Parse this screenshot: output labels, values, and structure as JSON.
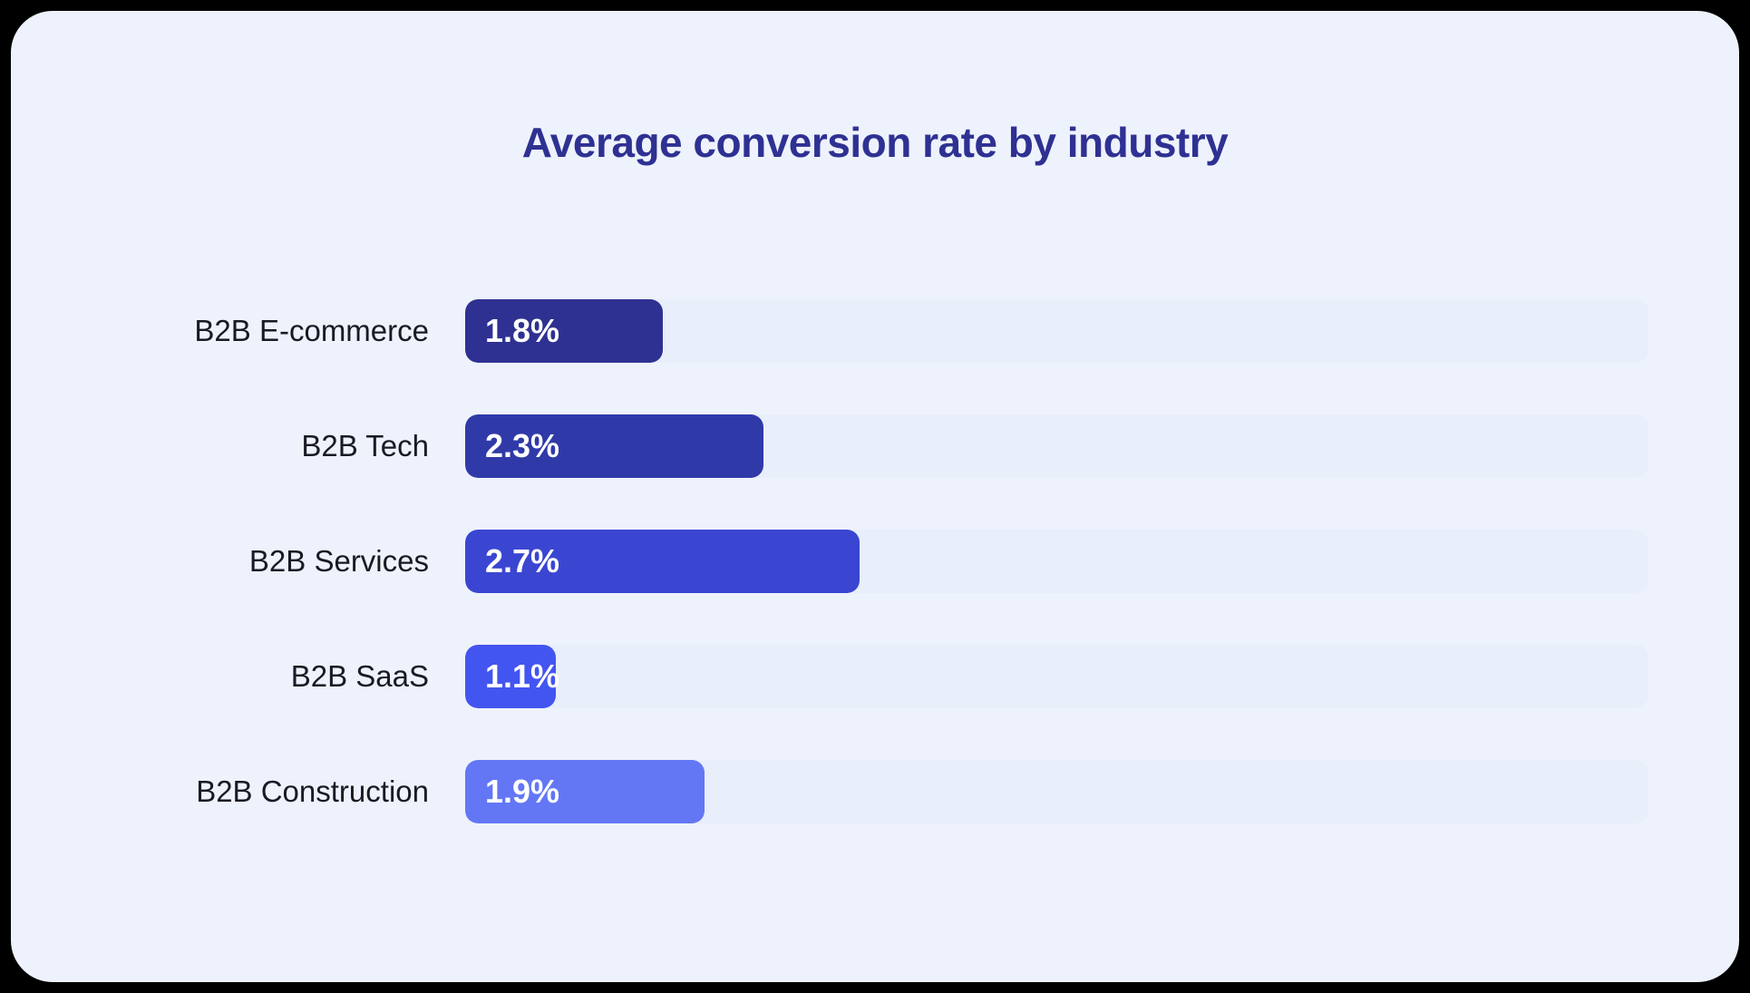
{
  "page": {
    "background": "#000000",
    "card_background": "#eef2fc"
  },
  "chart_data": {
    "type": "bar",
    "orientation": "horizontal",
    "title": "Average conversion rate by industry",
    "title_color": "#2e3192",
    "categories": [
      "B2B E-commerce",
      "B2B Tech",
      "B2B Services",
      "B2B SaaS",
      "B2B Construction"
    ],
    "values": [
      1.8,
      2.3,
      2.7,
      1.1,
      1.9
    ],
    "value_suffix": "%",
    "value_labels": [
      "1.8%",
      "2.3%",
      "2.7%",
      "1.1%",
      "1.9%"
    ],
    "bar_colors": [
      "#2e3191",
      "#2f3aa8",
      "#3a46d1",
      "#4355f0",
      "#6377f5"
    ],
    "track_color": "#e9eefb",
    "bar_width_pct": [
      16.7,
      25.2,
      33.3,
      7.7,
      20.2
    ],
    "value_label_color": "#ffffff",
    "category_label_color": "#191a23",
    "xlim": [
      0,
      8
    ],
    "grid": false,
    "legend": false
  }
}
